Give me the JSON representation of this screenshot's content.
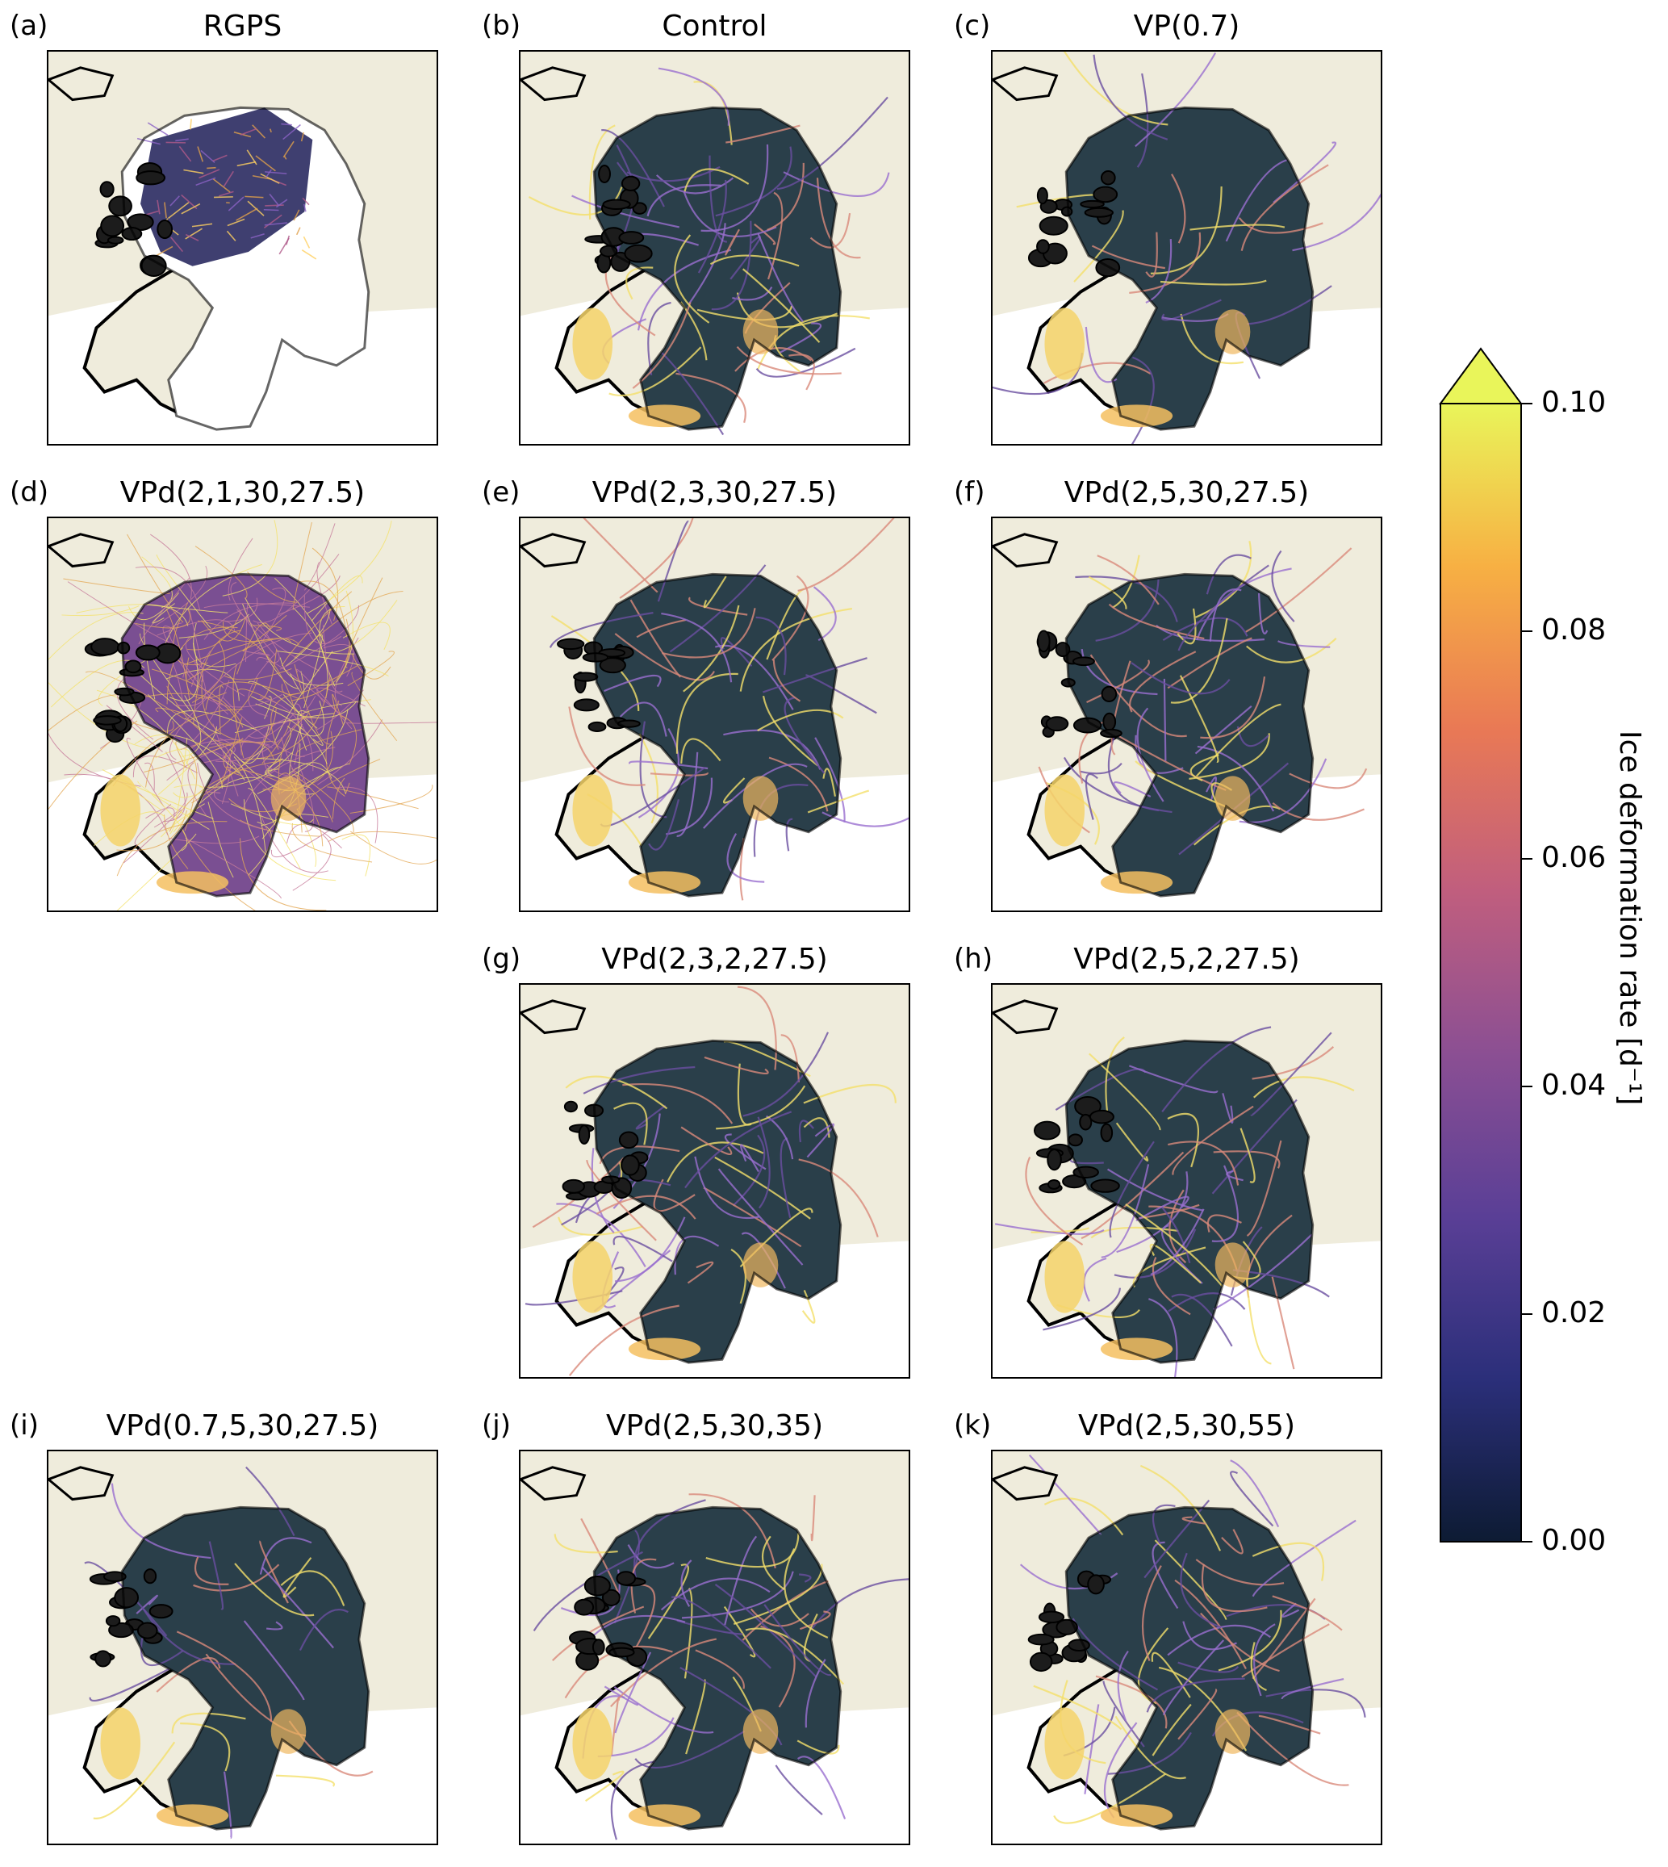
{
  "panels": [
    {
      "id": "a",
      "label": "(a)",
      "title": "RGPS",
      "style": "rgps"
    },
    {
      "id": "b",
      "label": "(b)",
      "title": "Control",
      "style": "control"
    },
    {
      "id": "c",
      "label": "(c)",
      "title": "VP(0.7)",
      "style": "vp"
    },
    {
      "id": "d",
      "label": "(d)",
      "title": "VPd(2,1,30,27.5)",
      "style": "dense"
    },
    {
      "id": "e",
      "label": "(e)",
      "title": "VPd(2,3,30,27.5)",
      "style": "lk"
    },
    {
      "id": "f",
      "label": "(f)",
      "title": "VPd(2,5,30,27.5)",
      "style": "lk"
    },
    {
      "id": "g",
      "label": "(g)",
      "title": "VPd(2,3,2,27.5)",
      "style": "lk"
    },
    {
      "id": "h",
      "label": "(h)",
      "title": "VPd(2,5,2,27.5)",
      "style": "lk"
    },
    {
      "id": "i",
      "label": "(i)",
      "title": "VPd(0.7,5,30,27.5)",
      "style": "vp"
    },
    {
      "id": "j",
      "label": "(j)",
      "title": "VPd(2,5,30,35)",
      "style": "lk"
    },
    {
      "id": "k",
      "label": "(k)",
      "title": "VPd(2,5,30,55)",
      "style": "lk"
    }
  ],
  "colorbar": {
    "label": "Ice deformation rate [d⁻¹]",
    "ticks": [
      "0.00",
      "0.02",
      "0.04",
      "0.06",
      "0.08",
      "0.10"
    ],
    "min": 0.0,
    "max": 0.1,
    "extend": "max",
    "colormap": [
      "#0d1b33",
      "#2b2f7a",
      "#5a3f96",
      "#8b4f93",
      "#c05e7e",
      "#e97955",
      "#f7b043",
      "#e9f55a"
    ]
  },
  "colors": {
    "land": "#efecdc",
    "ice_background": "#2a3f4a",
    "coast": "#000000"
  }
}
